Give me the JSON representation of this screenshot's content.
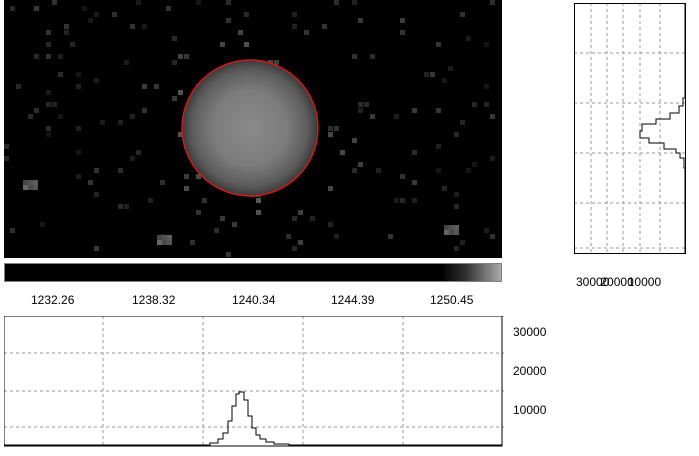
{
  "scale_labels": [
    "1232.26",
    "1238.32",
    "1240.34",
    "1244.39",
    "1250.45"
  ],
  "bottom_histogram": {
    "y_ticks": [
      "30000",
      "20000",
      "10000"
    ],
    "peak_value": 15000
  },
  "side_histogram": {
    "x_ticks": [
      "30000",
      "20000",
      "10000"
    ],
    "peak_value": 15000
  },
  "colors": {
    "circle": "#d11a1a",
    "grid": "#9a9a9a",
    "line": "#000000",
    "image_bg": "#000000"
  },
  "icons": {}
}
